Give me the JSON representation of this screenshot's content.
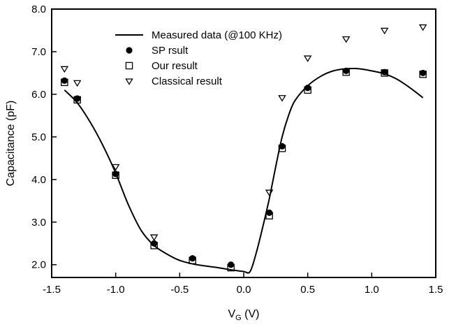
{
  "chart_data": {
    "type": "scatter",
    "title": "",
    "xlabel": {
      "main": "V",
      "sub": "G",
      "unit": " (V)"
    },
    "ylabel": "Capacitance (pF)",
    "xlim": [
      -1.5,
      1.5
    ],
    "ylim": [
      1.7,
      8.0
    ],
    "x_ticks": [
      -1.5,
      -1.0,
      -0.5,
      0.0,
      0.5,
      1.0,
      1.5
    ],
    "x_tick_labels": [
      "-1.5",
      "-1.0",
      "-0.5",
      "0.0",
      "0.5",
      "1.0",
      "1.5"
    ],
    "y_ticks": [
      2.0,
      3.0,
      4.0,
      5.0,
      6.0,
      7.0,
      8.0
    ],
    "y_tick_labels": [
      "2.0",
      "3.0",
      "4.0",
      "5.0",
      "6.0",
      "7.0",
      "8.0"
    ],
    "grid": false,
    "legend_position": "top-center",
    "series": [
      {
        "name": "Measured data (@100 KHz)",
        "kind": "line",
        "color": "#000000",
        "x": [
          -1.4,
          -1.3,
          -1.2,
          -1.1,
          -1.0,
          -0.9,
          -0.8,
          -0.7,
          -0.6,
          -0.5,
          -0.4,
          -0.3,
          -0.2,
          -0.1,
          0.0,
          0.05,
          0.1,
          0.15,
          0.2,
          0.25,
          0.3,
          0.35,
          0.4,
          0.5,
          0.6,
          0.7,
          0.8,
          0.9,
          1.0,
          1.1,
          1.2,
          1.3,
          1.4
        ],
        "y": [
          6.1,
          5.8,
          5.35,
          4.8,
          4.15,
          3.4,
          2.8,
          2.45,
          2.25,
          2.1,
          2.02,
          1.97,
          1.93,
          1.88,
          1.84,
          1.84,
          2.3,
          2.9,
          3.55,
          4.3,
          5.0,
          5.5,
          5.85,
          6.2,
          6.42,
          6.55,
          6.6,
          6.6,
          6.55,
          6.48,
          6.35,
          6.15,
          5.92
        ]
      },
      {
        "name": "SP rsult",
        "kind": "marker",
        "marker": "filled-circle",
        "x": [
          -1.4,
          -1.3,
          -1.0,
          -0.7,
          -0.4,
          -0.1,
          0.2,
          0.3,
          0.5,
          0.8,
          1.1,
          1.4
        ],
        "y": [
          6.32,
          5.9,
          4.13,
          2.5,
          2.15,
          2.0,
          3.22,
          4.78,
          6.15,
          6.55,
          6.52,
          6.5
        ]
      },
      {
        "name": "Our result",
        "kind": "marker",
        "marker": "open-square",
        "x": [
          -1.4,
          -1.3,
          -1.0,
          -0.7,
          -0.4,
          -0.1,
          0.2,
          0.3,
          0.5,
          0.8,
          1.1,
          1.4
        ],
        "y": [
          6.28,
          5.87,
          4.1,
          2.45,
          2.1,
          1.93,
          3.15,
          4.73,
          6.1,
          6.52,
          6.5,
          6.47
        ]
      },
      {
        "name": "Classical result",
        "kind": "marker",
        "marker": "open-triangle-down",
        "x": [
          -1.4,
          -1.3,
          -1.0,
          -0.7,
          0.2,
          0.3,
          0.5,
          0.8,
          1.1,
          1.4
        ],
        "y": [
          6.6,
          6.27,
          4.3,
          2.65,
          3.7,
          5.92,
          6.85,
          7.3,
          7.5,
          7.58
        ]
      }
    ]
  }
}
